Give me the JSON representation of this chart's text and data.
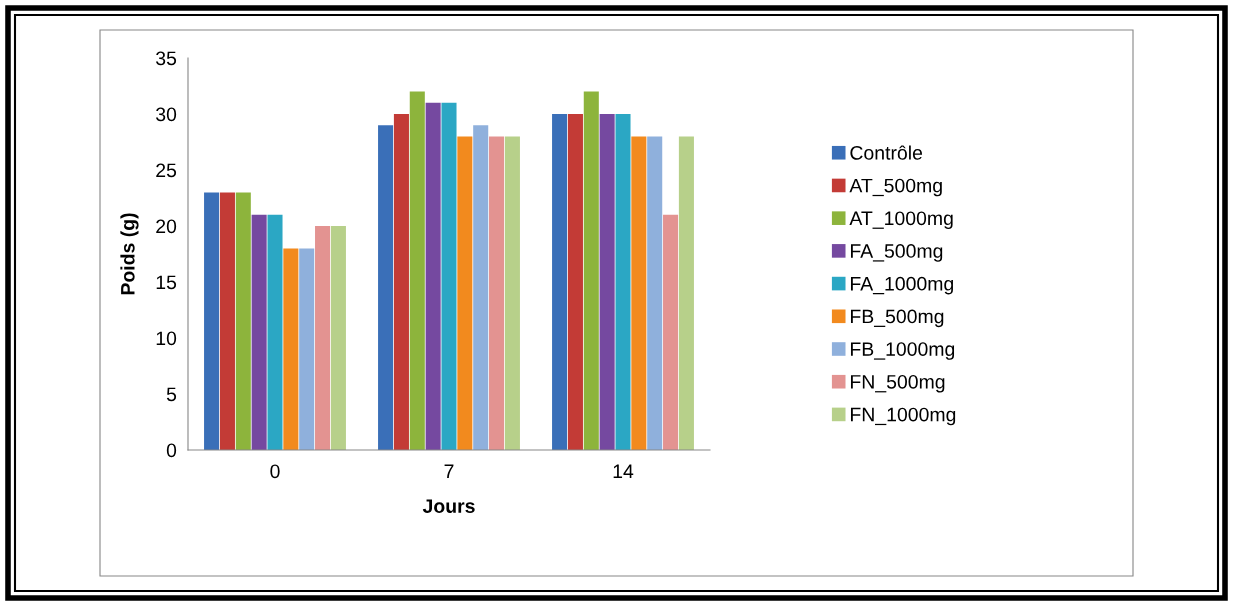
{
  "chart_data": {
    "type": "bar",
    "xlabel": "Jours",
    "ylabel": "Poids (g)",
    "categories": [
      "0",
      "7",
      "14"
    ],
    "series": [
      {
        "name": "Contrôle",
        "color": "#3a6fb8",
        "values": [
          23,
          29,
          30
        ]
      },
      {
        "name": "AT_500mg",
        "color": "#c33b36",
        "values": [
          23,
          30,
          30
        ]
      },
      {
        "name": "AT_1000mg",
        "color": "#8db43c",
        "values": [
          23,
          32,
          32
        ]
      },
      {
        "name": "FA_500mg",
        "color": "#7549a0",
        "values": [
          21,
          31,
          30
        ]
      },
      {
        "name": "FA_1000mg",
        "color": "#2ba7c4",
        "values": [
          21,
          31,
          30
        ]
      },
      {
        "name": "FB_500mg",
        "color": "#f28a1e",
        "values": [
          18,
          28,
          28
        ]
      },
      {
        "name": "FB_1000mg",
        "color": "#8fb0dc",
        "values": [
          18,
          29,
          28
        ]
      },
      {
        "name": "FN_500mg",
        "color": "#e39391",
        "values": [
          20,
          28,
          21
        ]
      },
      {
        "name": "FN_1000mg",
        "color": "#b7d08a",
        "values": [
          20,
          28,
          28
        ]
      }
    ],
    "ylim": [
      0,
      35
    ],
    "yticks": [
      0,
      5,
      10,
      15,
      20,
      25,
      30,
      35
    ],
    "grid": false,
    "legend": "right"
  }
}
